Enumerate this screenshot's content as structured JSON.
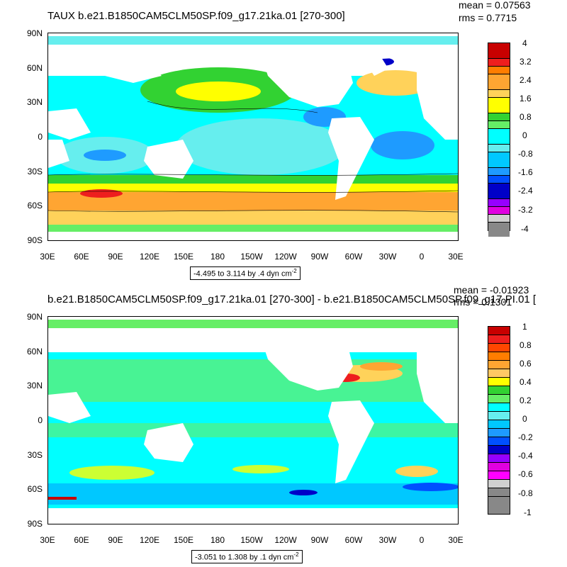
{
  "top": {
    "title": "TAUX b.e21.B1850CAM5CLM50SP.f09_g17.21ka.01 [270-300]",
    "mean": "mean = 0.07563",
    "rms": "rms = 0.7715",
    "range_text": "-4.495 to 3.114 by .4 dyn cm",
    "range_exp": "-2",
    "colorbar_labels": [
      "4",
      "3.2",
      "2.4",
      "1.6",
      "0.8",
      "0",
      "-0.8",
      "-1.6",
      "-2.4",
      "-3.2",
      "-4"
    ]
  },
  "bottom": {
    "title": "b.e21.B1850CAM5CLM50SP.f09_g17.21ka.01 [270-300] - b.e21.B1850CAM5CLM50SP.f09_g17.PI.01 [",
    "mean": "mean = -0.01923",
    "rms": "rms = 0.1301",
    "range_text": "-3.051 to 1.308 by .1 dyn cm",
    "range_exp": "-2",
    "colorbar_labels": [
      "1",
      "0.8",
      "0.6",
      "0.4",
      "0.2",
      "0",
      "-0.2",
      "-0.4",
      "-0.6",
      "-0.8",
      "-1"
    ]
  },
  "lat_labels": [
    "90N",
    "60N",
    "30N",
    "0",
    "30S",
    "60S",
    "90S"
  ],
  "lon_labels": [
    "30E",
    "60E",
    "90E",
    "120E",
    "150E",
    "180",
    "150W",
    "120W",
    "90W",
    "60W",
    "30W",
    "0",
    "30E"
  ],
  "colors": [
    "#c80000",
    "#ee1e1e",
    "#ff7d00",
    "#ffa532",
    "#ffd25a",
    "#ffff00",
    "#32d232",
    "#66ee66",
    "#00ffff",
    "#66eeee",
    "#00c8ff",
    "#1e9bff",
    "#0050ff",
    "#0000c8",
    "#9600ff",
    "#e000e0",
    "#d0d0d0",
    "#888888"
  ]
}
